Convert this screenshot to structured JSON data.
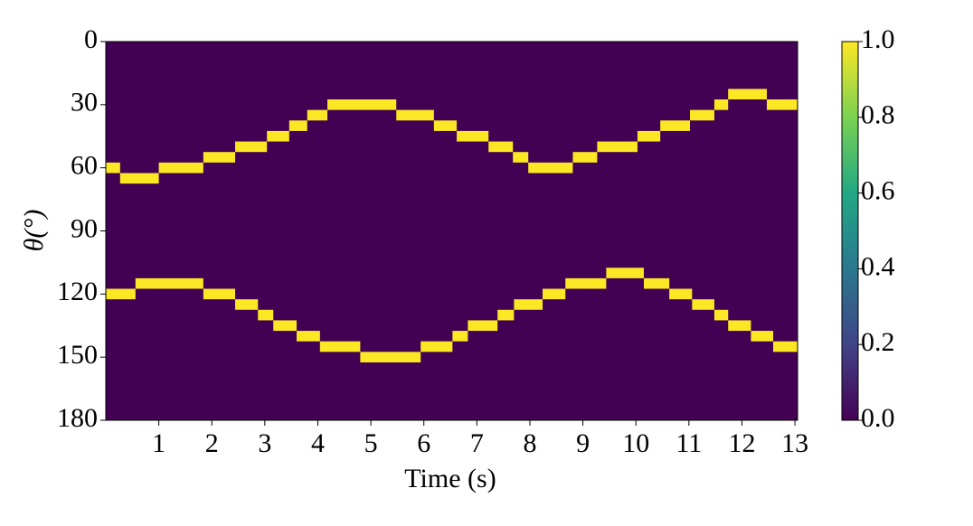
{
  "chart_data": {
    "type": "heatmap",
    "xlabel": "Time (s)",
    "ylabel": "θ(°)",
    "xlim": [
      0,
      13.05
    ],
    "xticks": [
      1,
      2,
      3,
      4,
      5,
      6,
      7,
      8,
      9,
      10,
      11,
      12,
      13
    ],
    "ylim": [
      180,
      0
    ],
    "yticks": [
      0,
      30,
      60,
      90,
      120,
      150,
      180
    ],
    "background_color": "#440154",
    "series": [
      {
        "color": "#fde725",
        "x": [
          0,
          0.27,
          1.0,
          1.84,
          2.44,
          3.04,
          3.46,
          3.8,
          4.18,
          5.48,
          6.19,
          6.62,
          7.22,
          7.68,
          7.97,
          8.81,
          9.27,
          10.03,
          10.46,
          11.02,
          11.48,
          11.74,
          12.47
        ],
        "values": [
          60,
          65,
          60,
          55,
          50,
          45,
          40,
          35,
          30,
          35,
          40,
          45,
          50,
          55,
          60,
          55,
          50,
          45,
          40,
          35,
          30,
          25,
          30
        ]
      },
      {
        "color": "#fde725",
        "x": [
          0,
          0.56,
          1.84,
          2.44,
          2.87,
          3.16,
          3.6,
          4.04,
          4.8,
          5.94,
          6.54,
          6.83,
          7.39,
          7.7,
          8.24,
          8.67,
          9.44,
          10.15,
          10.63,
          11.06,
          11.48,
          11.74,
          12.17,
          12.59
        ],
        "values": [
          120,
          115,
          120,
          125,
          130,
          135,
          140,
          145,
          150,
          145,
          140,
          135,
          130,
          125,
          120,
          115,
          110,
          115,
          120,
          125,
          130,
          135,
          140,
          145
        ]
      }
    ],
    "colorbar": {
      "lim": [
        0,
        1
      ],
      "ticks": [
        {
          "value": 0,
          "label": "0.0"
        },
        {
          "value": 0.2,
          "label": "0.2"
        },
        {
          "value": 0.4,
          "label": "0.4"
        },
        {
          "value": 0.6,
          "label": "0.6"
        },
        {
          "value": 0.8,
          "label": "0.8"
        },
        {
          "value": 1,
          "label": "1.0"
        }
      ],
      "colors": [
        "#440154",
        "#414487",
        "#2a788e",
        "#22a884",
        "#7ad151",
        "#fde725"
      ]
    }
  }
}
